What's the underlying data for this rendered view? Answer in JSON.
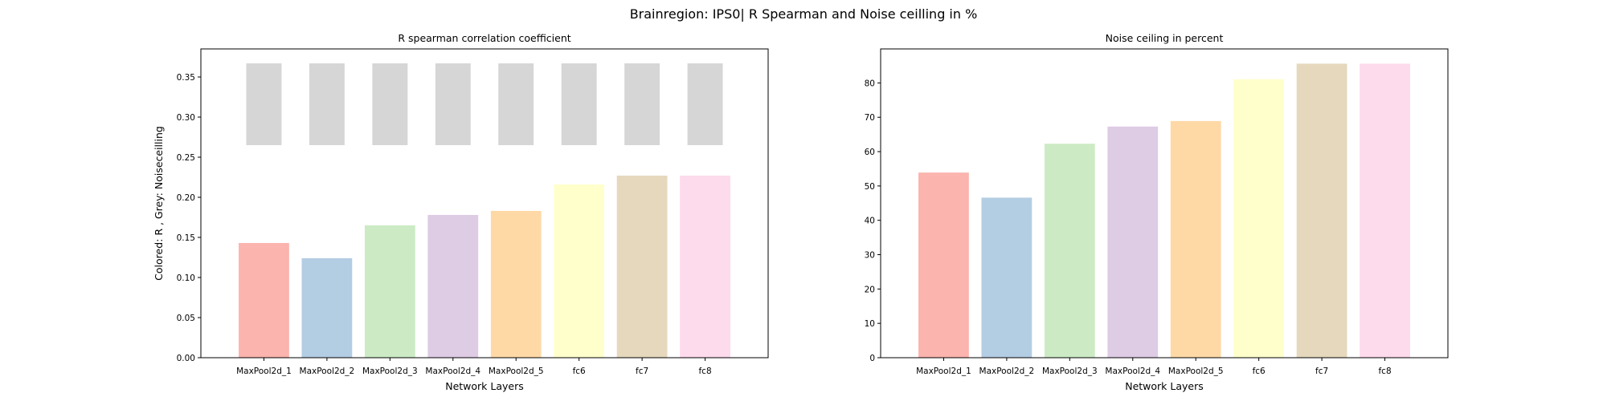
{
  "figure": {
    "suptitle": "Brainregion: IPS0| R Spearman and Noise ceilling in %"
  },
  "chart_data": [
    {
      "type": "bar",
      "title": "R spearman correlation coefficient",
      "xlabel": "Network Layers",
      "ylabel": "Colored: R , Grey: Noiseceilling",
      "categories": [
        "MaxPool2d_1",
        "MaxPool2d_2",
        "MaxPool2d_3",
        "MaxPool2d_4",
        "MaxPool2d_5",
        "fc6",
        "fc7",
        "fc8"
      ],
      "values": [
        0.143,
        0.124,
        0.165,
        0.178,
        0.183,
        0.216,
        0.227,
        0.227
      ],
      "noise_ceiling_range": {
        "lower": [
          0.265,
          0.265,
          0.265,
          0.265,
          0.265,
          0.265,
          0.265,
          0.265
        ],
        "upper": [
          0.367,
          0.367,
          0.367,
          0.367,
          0.367,
          0.367,
          0.367,
          0.367
        ],
        "color": "#d6d6d6"
      },
      "colors": [
        "#fbb4ae",
        "#b3cde3",
        "#ccebc5",
        "#decbe4",
        "#fed9a6",
        "#ffffcc",
        "#e5d8bd",
        "#fddaec"
      ],
      "ylim": [
        0,
        0.385
      ],
      "yticks": [
        0.0,
        0.05,
        0.1,
        0.15,
        0.2,
        0.25,
        0.3,
        0.35
      ],
      "ytick_labels": [
        "0.00",
        "0.05",
        "0.10",
        "0.15",
        "0.20",
        "0.25",
        "0.30",
        "0.35"
      ],
      "grid": false
    },
    {
      "type": "bar",
      "title": "Noise ceiling in percent",
      "xlabel": "Network Layers",
      "ylabel": "",
      "categories": [
        "MaxPool2d_1",
        "MaxPool2d_2",
        "MaxPool2d_3",
        "MaxPool2d_4",
        "MaxPool2d_5",
        "fc6",
        "fc7",
        "fc8"
      ],
      "values": [
        53.9,
        46.6,
        62.3,
        67.3,
        68.9,
        81.1,
        85.6,
        85.6
      ],
      "colors": [
        "#fbb4ae",
        "#b3cde3",
        "#ccebc5",
        "#decbe4",
        "#fed9a6",
        "#ffffcc",
        "#e5d8bd",
        "#fddaec"
      ],
      "ylim": [
        0,
        89.9
      ],
      "yticks": [
        0,
        10,
        20,
        30,
        40,
        50,
        60,
        70,
        80
      ],
      "ytick_labels": [
        "0",
        "10",
        "20",
        "30",
        "40",
        "50",
        "60",
        "70",
        "80"
      ],
      "grid": false
    }
  ]
}
